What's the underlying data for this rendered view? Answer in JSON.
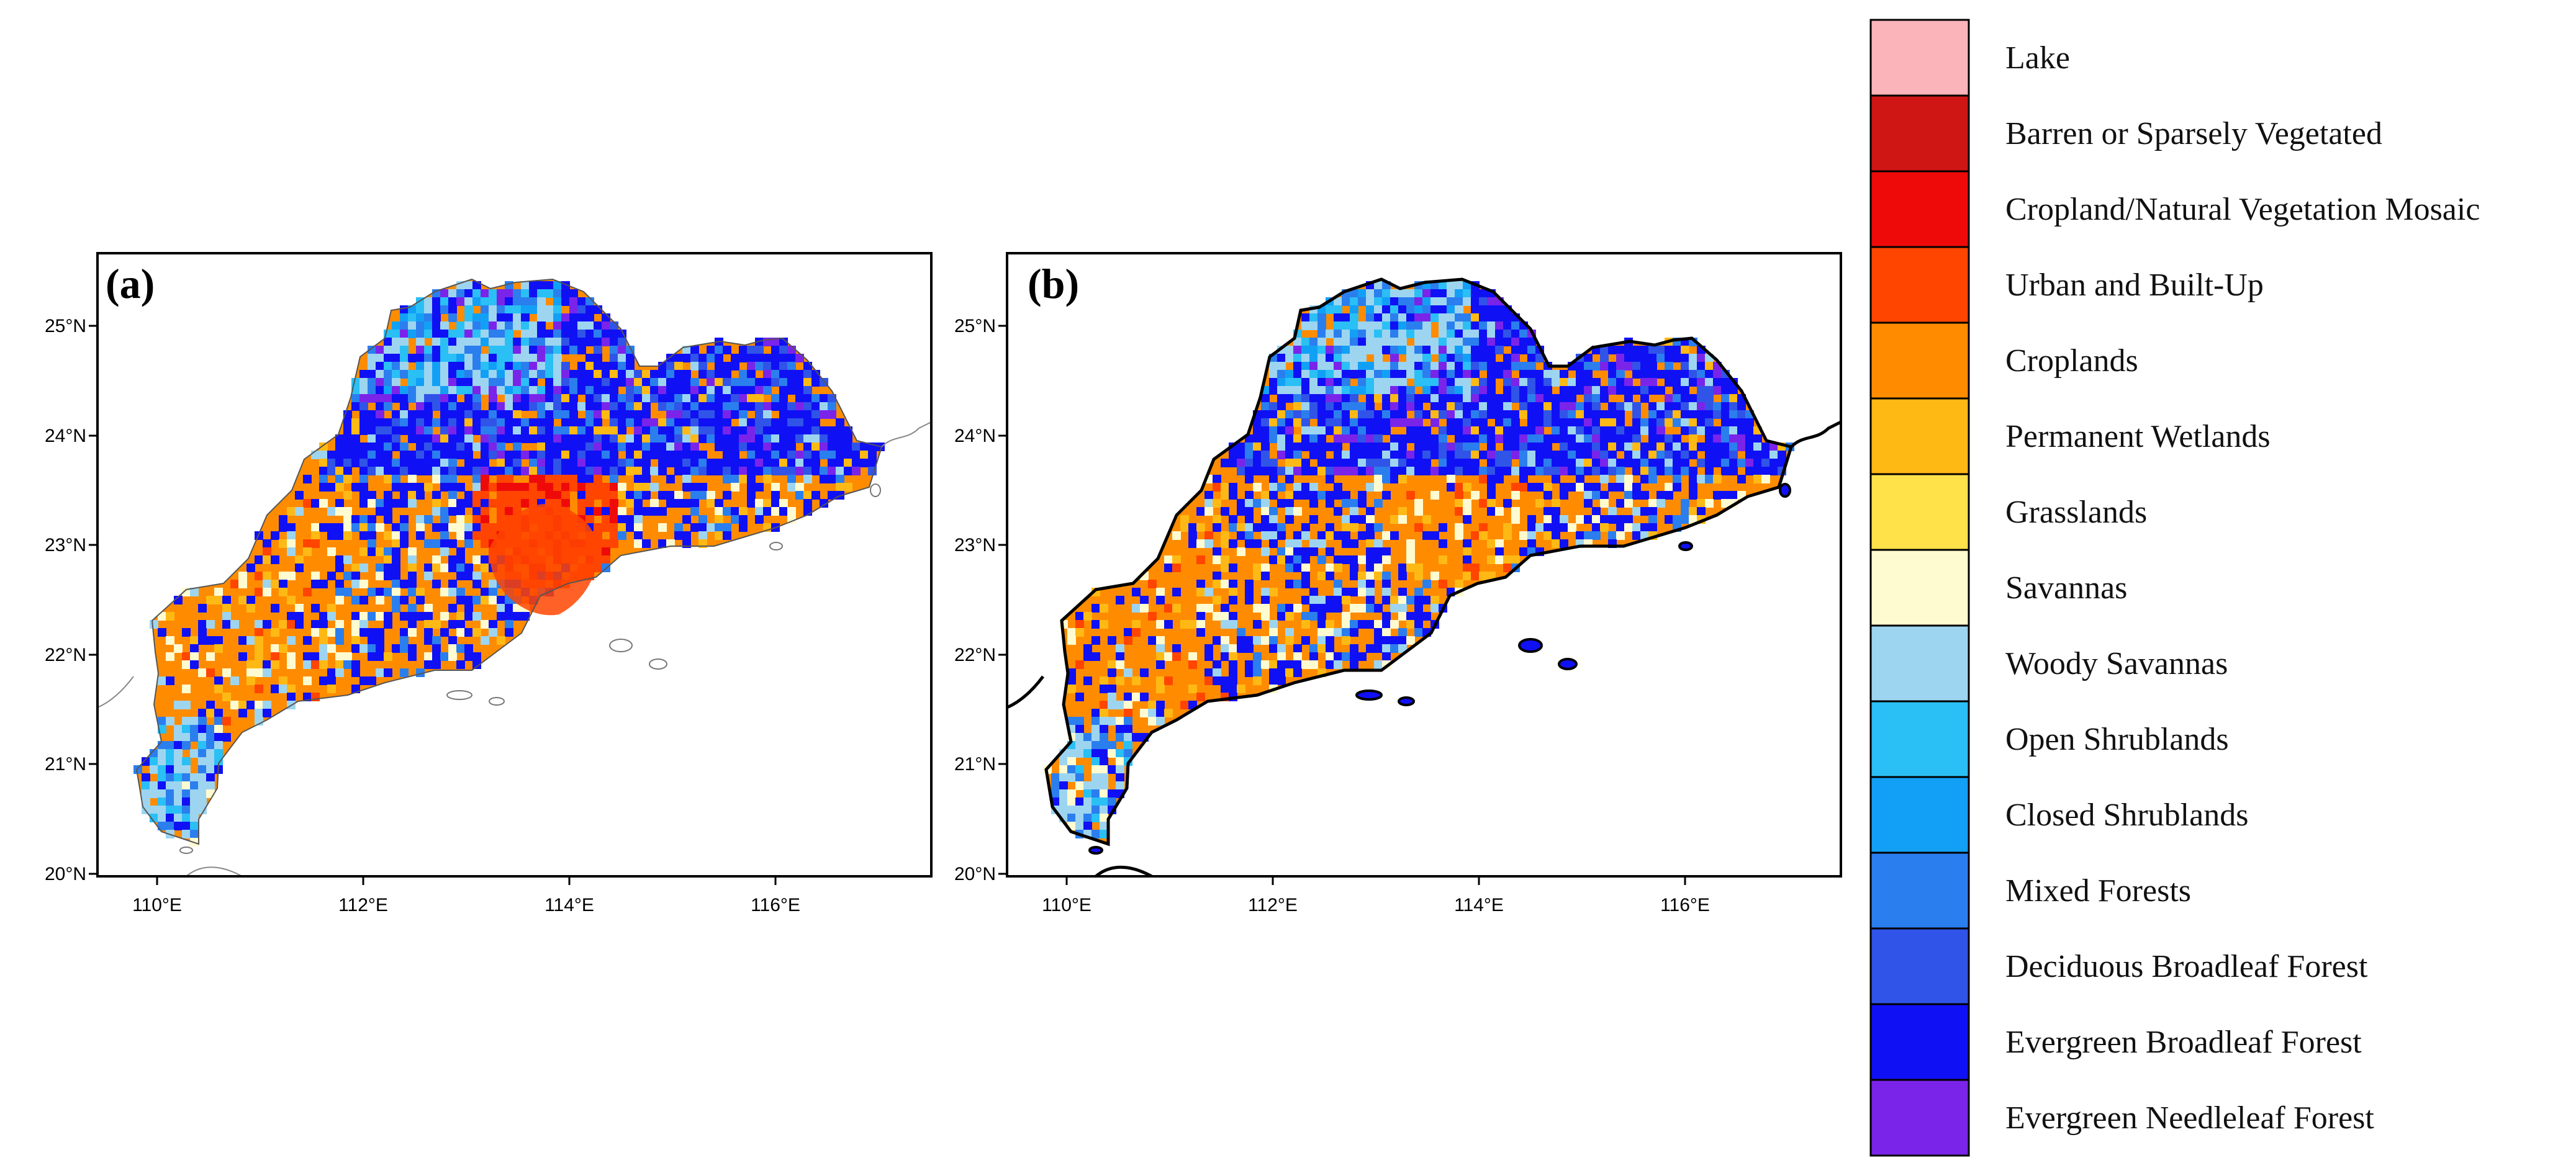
{
  "panels": [
    {
      "label": "(a)",
      "coast": "thin"
    },
    {
      "label": "(b)",
      "coast": "thick"
    }
  ],
  "axes": {
    "lat_ticks": [
      "25°N",
      "24°N",
      "23°N",
      "22°N",
      "21°N",
      "20°N"
    ],
    "lon_ticks": [
      "110°E",
      "112°E",
      "114°E",
      "116°E"
    ]
  },
  "legend": {
    "items": [
      {
        "label": "Lake",
        "color": "#fbb4b9"
      },
      {
        "label": "Barren or Sparsely Vegetated",
        "color": "#d01515"
      },
      {
        "label": "Cropland/Natural Vegetation Mosaic",
        "color": "#ef0a0a"
      },
      {
        "label": "Urban and Built-Up",
        "color": "#ff4500"
      },
      {
        "label": "Croplands",
        "color": "#ff8c00"
      },
      {
        "label": "Permanent Wetlands",
        "color": "#ffb915"
      },
      {
        "label": "Grasslands",
        "color": "#ffe14a"
      },
      {
        "label": "Savannas",
        "color": "#fffbd0"
      },
      {
        "label": "Woody Savannas",
        "color": "#9dd5f0"
      },
      {
        "label": "Open Shrublands",
        "color": "#2abff5"
      },
      {
        "label": "Closed Shrublands",
        "color": "#12a0f6"
      },
      {
        "label": "Mixed Forests",
        "color": "#2b7eee"
      },
      {
        "label": "Deciduous Broadleaf Forest",
        "color": "#3054e8"
      },
      {
        "label": "Evergreen Broadleaf Forest",
        "color": "#1010f5"
      },
      {
        "label": "Evergreen Needleleaf Forest",
        "color": "#7a24ea"
      }
    ]
  }
}
